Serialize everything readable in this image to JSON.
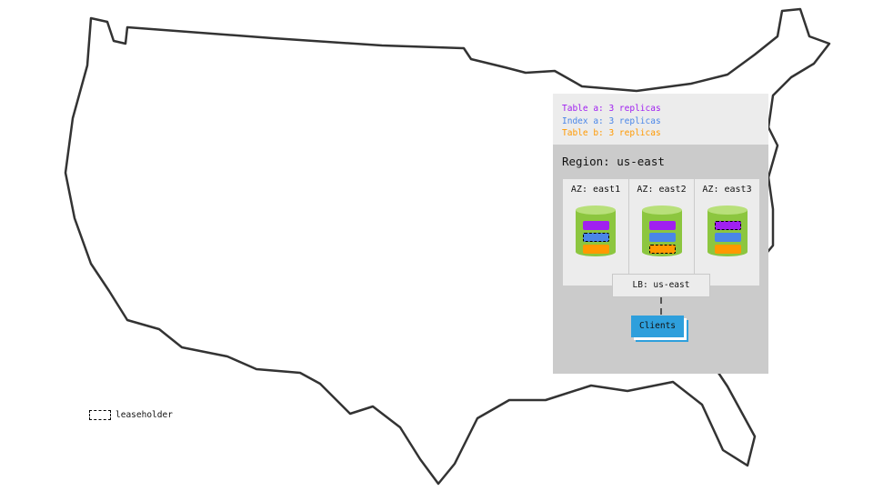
{
  "legend": {
    "items": [
      {
        "label": "Table a: 3 replicas",
        "color": "#a020f0"
      },
      {
        "label": "Index a: 3 replicas",
        "color": "#4a86e8"
      },
      {
        "label": "Table b: 3 replicas",
        "color": "#ff9900"
      }
    ]
  },
  "region": {
    "label": "Region: us-east"
  },
  "azs": [
    {
      "label": "AZ: east1",
      "leaseholder": "index-a"
    },
    {
      "label": "AZ: east2",
      "leaseholder": "table-b"
    },
    {
      "label": "AZ: east3",
      "leaseholder": "table-a"
    }
  ],
  "load_balancer": {
    "label": "LB: us-east"
  },
  "clients": {
    "label": "Clients"
  },
  "leaseholder_key": {
    "label": "leaseholder"
  },
  "colors": {
    "database": "#8cc63f",
    "database_top": "#b8e07a",
    "clients": "#2e9fdc"
  }
}
